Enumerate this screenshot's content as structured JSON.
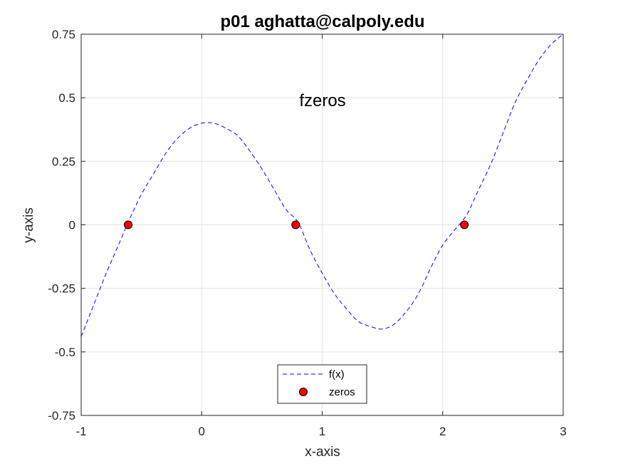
{
  "chart_data": {
    "type": "line",
    "title": "p01 aghatta@calpoly.edu",
    "xlabel": "x-axis",
    "ylabel": "y-axis",
    "annotation": "fzeros",
    "xlim": [
      -1,
      3
    ],
    "ylim": [
      -0.75,
      0.75
    ],
    "xticks": [
      -1,
      0,
      1,
      2,
      3
    ],
    "xtick_labels": [
      "-1",
      "0",
      "1",
      "2",
      "3"
    ],
    "yticks": [
      0.75,
      0.5,
      0.25,
      0,
      -0.25,
      -0.5,
      -0.75
    ],
    "ytick_labels": [
      "0.75",
      "0.5",
      "0.25",
      "0",
      "-0.25",
      "-0.5",
      "-0.75"
    ],
    "grid": true,
    "legend_position": "bottom-center",
    "series": [
      {
        "name": "f(x)",
        "style": "dashed",
        "color": "#0000ff",
        "x": [
          -1.0,
          -0.9,
          -0.8,
          -0.7,
          -0.6,
          -0.5,
          -0.4,
          -0.3,
          -0.2,
          -0.1,
          0.0,
          0.1,
          0.2,
          0.3,
          0.4,
          0.5,
          0.6,
          0.7,
          0.8,
          0.9,
          1.0,
          1.1,
          1.2,
          1.3,
          1.4,
          1.5,
          1.6,
          1.7,
          1.8,
          1.9,
          2.0,
          2.1,
          2.2,
          2.3,
          2.4,
          2.5,
          2.6,
          2.7,
          2.8,
          2.9,
          3.0
        ],
        "y": [
          -0.44,
          -0.32,
          -0.2,
          -0.09,
          0.02,
          0.12,
          0.2,
          0.28,
          0.34,
          0.38,
          0.4,
          0.4,
          0.38,
          0.35,
          0.29,
          0.22,
          0.14,
          0.06,
          0.01,
          -0.1,
          -0.19,
          -0.27,
          -0.33,
          -0.38,
          -0.4,
          -0.41,
          -0.39,
          -0.34,
          -0.27,
          -0.17,
          -0.08,
          -0.02,
          0.04,
          0.14,
          0.24,
          0.36,
          0.48,
          0.57,
          0.65,
          0.71,
          0.75
        ]
      },
      {
        "name": "zeros",
        "style": "markers",
        "color": "#ff0000",
        "x": [
          -0.61,
          0.78,
          2.18
        ],
        "y": [
          0,
          0,
          0
        ]
      }
    ]
  }
}
